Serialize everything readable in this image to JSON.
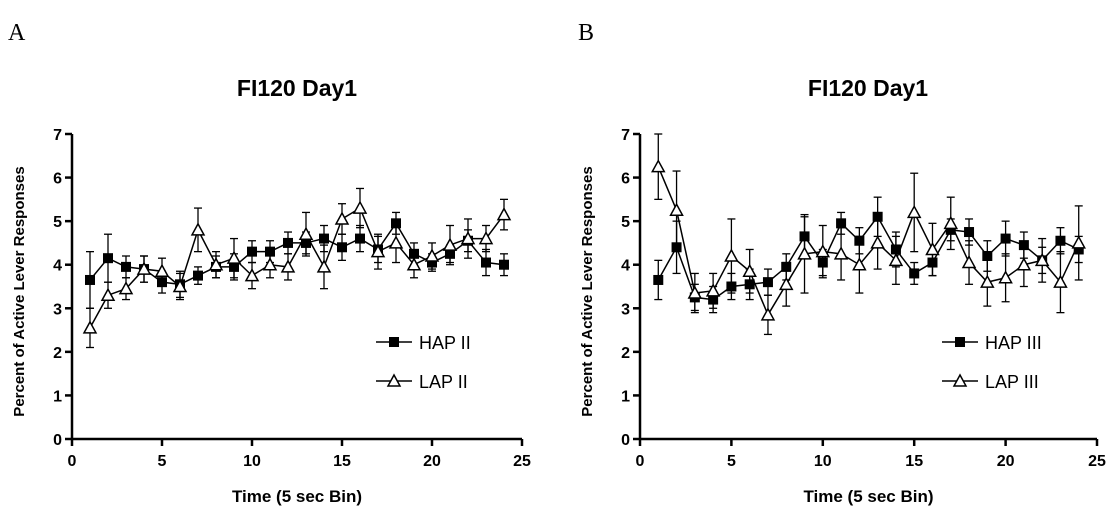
{
  "chart_data": [
    {
      "type": "line",
      "panel": "A",
      "title": "FI120 Day1",
      "xlabel": "Time (5 sec Bin)",
      "ylabel": "Percent of Active Lever Responses",
      "xlim": [
        0,
        25
      ],
      "ylim": [
        0,
        7
      ],
      "xticks": [
        0,
        5,
        10,
        15,
        20,
        25
      ],
      "yticks": [
        0,
        1,
        2,
        3,
        4,
        5,
        6,
        7
      ],
      "grid": false,
      "legend_position": "bottom-right",
      "x": [
        1,
        2,
        3,
        4,
        5,
        6,
        7,
        8,
        9,
        10,
        11,
        12,
        13,
        14,
        15,
        16,
        17,
        18,
        19,
        20,
        21,
        22,
        23,
        24
      ],
      "series": [
        {
          "name": "HAP II",
          "marker": "filled-square",
          "values": [
            3.65,
            4.15,
            3.95,
            3.9,
            3.6,
            3.55,
            3.75,
            3.95,
            3.95,
            4.3,
            4.3,
            4.5,
            4.5,
            4.6,
            4.4,
            4.6,
            4.35,
            4.95,
            4.25,
            4.05,
            4.25,
            4.55,
            4.05,
            4.0
          ],
          "errors": [
            0.65,
            0.55,
            0.25,
            0.3,
            0.25,
            0.3,
            0.2,
            0.25,
            0.3,
            0.25,
            0.25,
            0.25,
            0.25,
            0.3,
            0.3,
            0.3,
            0.3,
            0.25,
            0.25,
            0.2,
            0.2,
            0.25,
            0.3,
            0.25
          ]
        },
        {
          "name": "LAP II",
          "marker": "open-triangle",
          "values": [
            2.55,
            3.3,
            3.45,
            3.9,
            3.85,
            3.5,
            4.8,
            4.0,
            4.15,
            3.75,
            4.0,
            3.95,
            4.7,
            3.95,
            5.05,
            5.3,
            4.3,
            4.5,
            4.0,
            4.2,
            4.45,
            4.6,
            4.6,
            5.15
          ],
          "errors": [
            0.45,
            0.3,
            0.25,
            0.3,
            0.3,
            0.3,
            0.5,
            0.3,
            0.45,
            0.3,
            0.3,
            0.3,
            0.5,
            0.5,
            0.35,
            0.45,
            0.4,
            0.45,
            0.3,
            0.3,
            0.45,
            0.45,
            0.3,
            0.35
          ]
        }
      ]
    },
    {
      "type": "line",
      "panel": "B",
      "title": "FI120 Day1",
      "xlabel": "Time (5 sec Bin)",
      "ylabel": "Percent of Active Lever Responses",
      "xlim": [
        0,
        25
      ],
      "ylim": [
        0,
        7
      ],
      "xticks": [
        0,
        5,
        10,
        15,
        20,
        25
      ],
      "yticks": [
        0,
        1,
        2,
        3,
        4,
        5,
        6,
        7
      ],
      "grid": false,
      "legend_position": "bottom-right",
      "x": [
        1,
        2,
        3,
        4,
        5,
        6,
        7,
        8,
        9,
        10,
        11,
        12,
        13,
        14,
        15,
        16,
        17,
        18,
        19,
        20,
        21,
        22,
        23,
        24
      ],
      "series": [
        {
          "name": "HAP III",
          "marker": "filled-square",
          "values": [
            3.65,
            4.4,
            3.25,
            3.2,
            3.5,
            3.55,
            3.6,
            3.95,
            4.65,
            4.05,
            4.95,
            4.55,
            5.1,
            4.35,
            3.8,
            4.05,
            4.8,
            4.75,
            4.2,
            4.6,
            4.45,
            4.1,
            4.55,
            4.35
          ],
          "errors": [
            0.45,
            0.6,
            0.3,
            0.3,
            0.3,
            0.35,
            0.3,
            0.3,
            0.45,
            0.3,
            0.25,
            0.3,
            0.45,
            0.4,
            0.25,
            0.3,
            0.25,
            0.3,
            0.35,
            0.4,
            0.3,
            0.3,
            0.3,
            0.3
          ]
        },
        {
          "name": "LAP III",
          "marker": "open-triangle",
          "values": [
            6.25,
            5.25,
            3.35,
            3.4,
            4.2,
            3.85,
            2.85,
            3.55,
            4.25,
            4.3,
            4.25,
            4.0,
            4.5,
            4.1,
            5.2,
            4.35,
            4.95,
            4.05,
            3.6,
            3.7,
            4.0,
            4.1,
            3.6,
            4.5
          ],
          "errors": [
            0.75,
            0.9,
            0.45,
            0.4,
            0.85,
            0.5,
            0.45,
            0.5,
            0.9,
            0.6,
            0.6,
            0.65,
            0.6,
            0.55,
            0.9,
            0.6,
            0.6,
            0.5,
            0.55,
            0.55,
            0.5,
            0.5,
            0.7,
            0.85
          ]
        }
      ]
    }
  ],
  "labels": {
    "panel_a": "A",
    "panel_b": "B"
  }
}
